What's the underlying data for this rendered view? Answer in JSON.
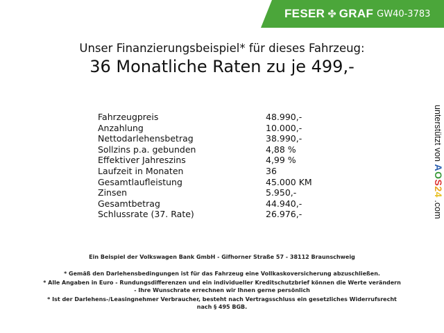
{
  "banner": {
    "brand_left": "FESER",
    "brand_right": "GRAF",
    "code": "GW40-3783",
    "color": "#4ba63a",
    "icon": "clover-icon"
  },
  "title": {
    "line1": "Unser Finanzierungsbeispiel* für dieses Fahrzeug:",
    "line2": "36 Monatliche Raten zu je 499,-"
  },
  "table": [
    {
      "label": "Fahrzeugpreis",
      "value": "48.990,-"
    },
    {
      "label": "Anzahlung",
      "value": "10.000,-"
    },
    {
      "label": "Nettodarlehensbetrag",
      "value": "38.990,-"
    },
    {
      "label": "Sollzins p.a. gebunden",
      "value": "4,88 %"
    },
    {
      "label": "Effektiver Jahreszins",
      "value": "4,99 %"
    },
    {
      "label": "Laufzeit in Monaten",
      "value": "36"
    },
    {
      "label": "Gesamtlaufleistung",
      "value": "45.000 KM"
    },
    {
      "label": "Zinsen",
      "value": "5.950,-"
    },
    {
      "label": "Gesamtbetrag",
      "value": "44.940,-"
    },
    {
      "label": "Schlussrate (37. Rate)",
      "value": "26.976,-"
    }
  ],
  "side": {
    "prefix": "unterstützt von",
    "logo": [
      "A",
      "O",
      "S",
      "2",
      "4"
    ],
    "suffix": ".com"
  },
  "footer": {
    "bank": "Ein Beispiel der Volkswagen Bank GmbH - Gifhorner Straße 57 - 38112 Braunschweig",
    "notes": [
      "* Gemäß den Darlehensbedingungen ist für das Fahrzeug eine Vollkaskoversicherung abzuschließen.",
      "* Alle Angaben in Euro - Rundungsdifferenzen und ein individueller Kreditschutzbrief können die Werte verändern",
      "- Ihre Wunschrate errechnen wir Ihnen gerne persönlich",
      "* Ist der Darlehens-/Leasingnehmer Verbraucher, besteht nach Vertragsschluss ein gesetzliches Widerrufsrecht",
      "nach § 495 BGB."
    ]
  }
}
